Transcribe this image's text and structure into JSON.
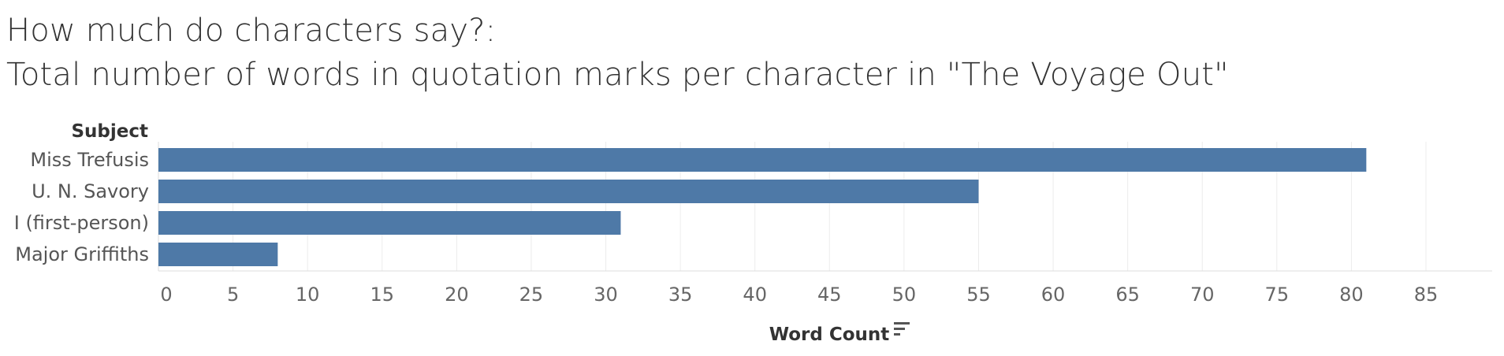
{
  "header": {
    "title": "How much do characters say?:",
    "subtitle": "Total number of words in quotation marks per character in \"The Voyage Out\""
  },
  "chart_data": {
    "type": "bar",
    "orientation": "horizontal",
    "row_header": "Subject",
    "categories": [
      "Miss Trefusis",
      "U. N. Savory",
      "I (first-person)",
      "Major Griffiths"
    ],
    "values": [
      81,
      55,
      31,
      8
    ],
    "xlabel": "Word Count",
    "xlim": [
      0,
      85
    ],
    "xticks": [
      0,
      5,
      10,
      15,
      20,
      25,
      30,
      35,
      40,
      45,
      50,
      55,
      60,
      65,
      70,
      75,
      80,
      85
    ],
    "grid": true,
    "bar_color": "#4e79a7",
    "sort_icon": "sort-descending-icon"
  }
}
